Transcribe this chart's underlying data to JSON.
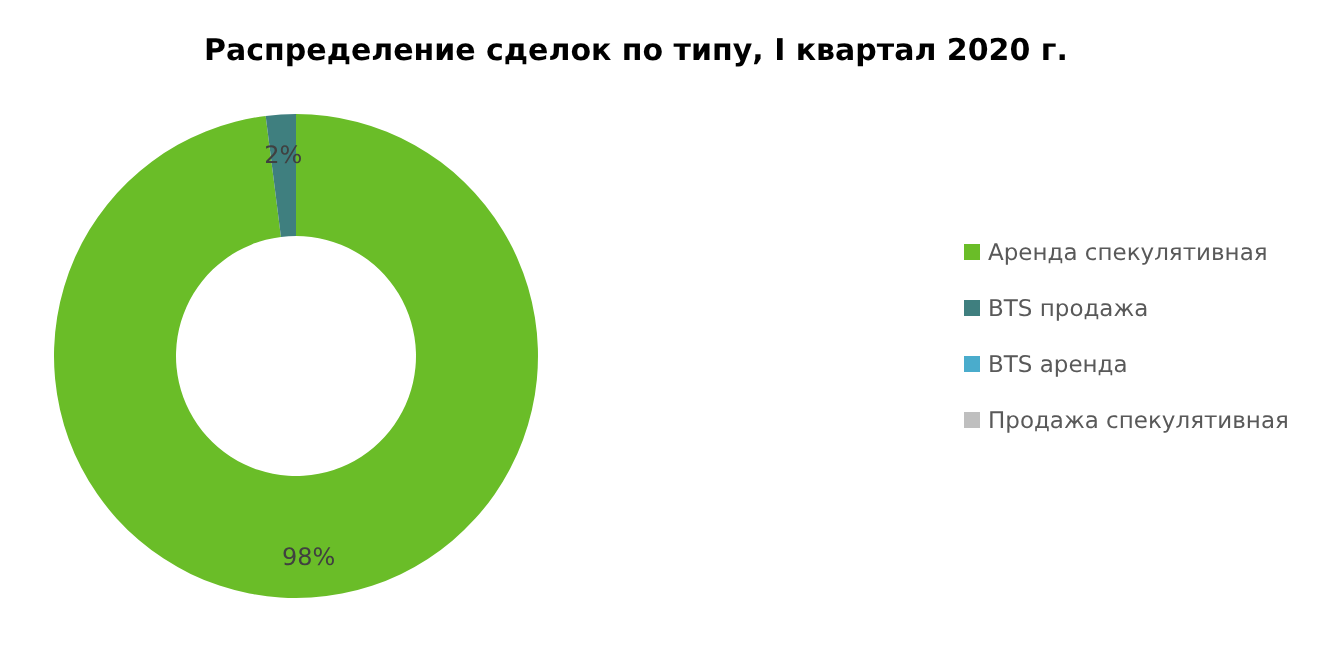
{
  "chart_data": {
    "type": "donut",
    "title": "Распределение сделок по типу, I квартал 2020 г.",
    "categories": [
      "Аренда спекулятивная",
      "BTS продажа",
      "BTS аренда",
      "Продажа спекулятивная"
    ],
    "values": [
      98,
      2,
      0,
      0
    ],
    "colors": [
      "#6abd28",
      "#3f7f7f",
      "#4aaccc",
      "#bfbfbf"
    ],
    "value_labels": [
      "98%",
      "2%",
      null,
      null
    ],
    "legend": "right"
  }
}
